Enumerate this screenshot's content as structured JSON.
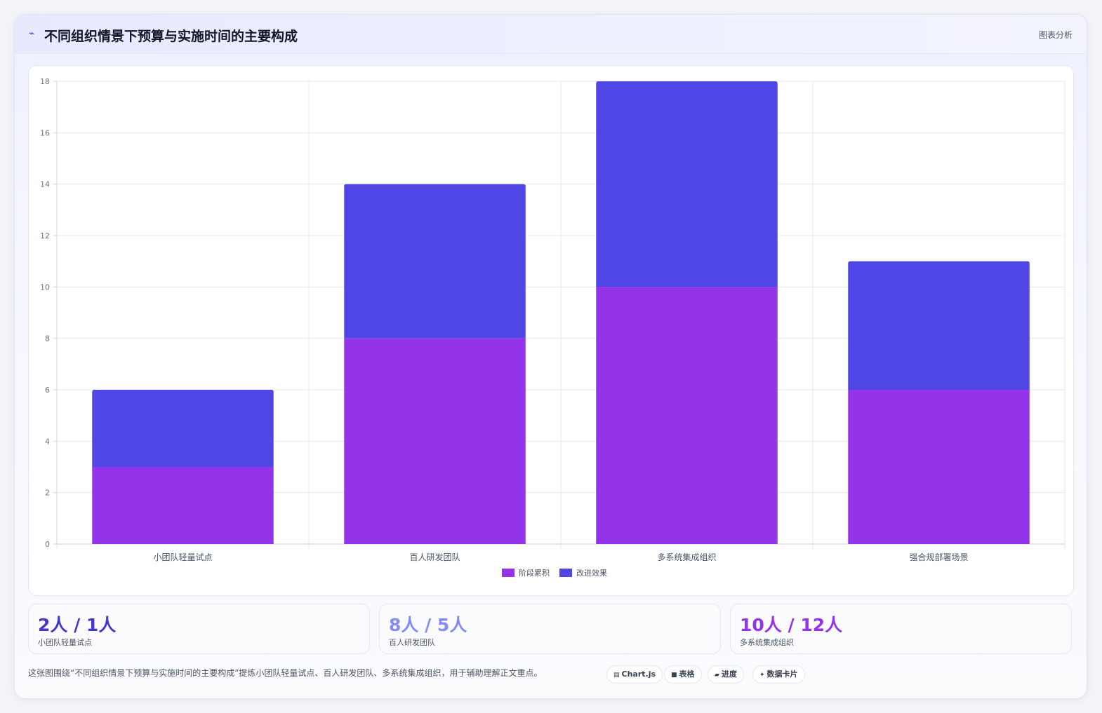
{
  "header": {
    "icon": "trend-line-icon",
    "title": "不同组织情景下预算与实施时间的主要构成",
    "action_label": "图表分析"
  },
  "chart_data": {
    "type": "bar",
    "stacked": true,
    "categories": [
      "小团队轻量试点",
      "百人研发团队",
      "多系统集成组织",
      "强合规部署场景"
    ],
    "series": [
      {
        "name": "阶段累积",
        "values": [
          3,
          8,
          10,
          6
        ],
        "color": "#9333ea"
      },
      {
        "name": "改进效果",
        "values": [
          3,
          6,
          8,
          5
        ],
        "color": "#4f46e5"
      }
    ],
    "ylim": [
      0,
      18
    ],
    "yticks": [
      0,
      2,
      4,
      6,
      8,
      10,
      12,
      14,
      16,
      18
    ],
    "grid": true,
    "legend_position": "bottom"
  },
  "stats": [
    {
      "value": "2人 / 1人",
      "label": "小团队轻量试点",
      "color": "#4338ca"
    },
    {
      "value": "8人 / 5人",
      "label": "百人研发团队",
      "color": "#818cf8"
    },
    {
      "value": "10人 / 12人",
      "label": "多系统集成组织",
      "color": "#9333ea"
    }
  ],
  "footer": {
    "note": "这张图围绕“不同组织情景下预算与实施时间的主要构成”提炼小团队轻量试点、百人研发团队、多系统集成组织，用于辅助理解正文重点。",
    "tags": [
      {
        "icon": "chart-icon",
        "glyph": "▤",
        "label": "Chart.js"
      },
      {
        "icon": "table-icon",
        "glyph": "■",
        "label": "表格"
      },
      {
        "icon": "progress-icon",
        "glyph": "▰",
        "label": "进度"
      },
      {
        "icon": "sparkle-icon",
        "glyph": "✦",
        "label": "数据卡片"
      }
    ]
  }
}
